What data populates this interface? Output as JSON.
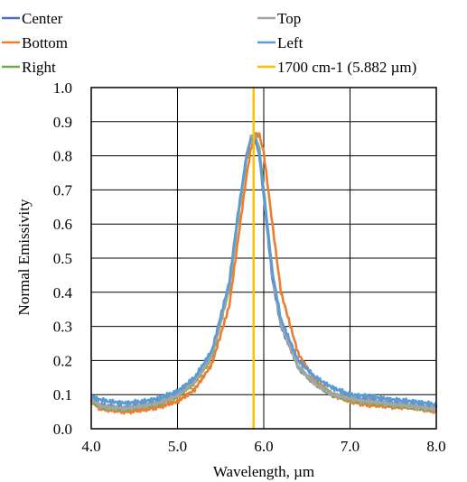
{
  "chart_data": {
    "type": "line",
    "title": "",
    "xlabel": "Wavelength, µm",
    "ylabel": "Normal Emissivity",
    "xlim": [
      4.0,
      8.0
    ],
    "ylim": [
      0.0,
      1.0
    ],
    "x_ticks": [
      "4.0",
      "5.0",
      "6.0",
      "7.0",
      "8.0"
    ],
    "y_ticks": [
      "0.0",
      "0.1",
      "0.2",
      "0.3",
      "0.4",
      "0.5",
      "0.6",
      "0.7",
      "0.8",
      "0.9",
      "1.0"
    ],
    "grid": true,
    "legend_position": "top",
    "series": [
      {
        "name": "Center",
        "color": "#4472C4",
        "x": [
          4.0,
          4.1,
          4.2,
          4.4,
          4.6,
          4.8,
          5.0,
          5.2,
          5.4,
          5.6,
          5.7,
          5.8,
          5.85,
          5.9,
          5.95,
          6.0,
          6.1,
          6.2,
          6.4,
          6.6,
          6.8,
          7.0,
          7.2,
          7.5,
          7.8,
          8.0
        ],
        "y": [
          0.09,
          0.07,
          0.065,
          0.062,
          0.07,
          0.08,
          0.1,
          0.14,
          0.22,
          0.42,
          0.62,
          0.8,
          0.85,
          0.85,
          0.8,
          0.68,
          0.44,
          0.3,
          0.18,
          0.13,
          0.1,
          0.09,
          0.085,
          0.075,
          0.068,
          0.06
        ]
      },
      {
        "name": "Bottom",
        "color": "#ED7D31",
        "x": [
          4.0,
          4.1,
          4.2,
          4.4,
          4.6,
          4.8,
          5.0,
          5.2,
          5.4,
          5.6,
          5.7,
          5.8,
          5.85,
          5.9,
          5.95,
          6.0,
          6.1,
          6.2,
          6.4,
          6.6,
          6.8,
          7.0,
          7.2,
          7.5,
          7.8,
          8.0
        ],
        "y": [
          0.08,
          0.06,
          0.055,
          0.05,
          0.055,
          0.065,
          0.08,
          0.115,
          0.19,
          0.36,
          0.55,
          0.74,
          0.82,
          0.86,
          0.86,
          0.81,
          0.6,
          0.4,
          0.22,
          0.14,
          0.1,
          0.08,
          0.07,
          0.065,
          0.06,
          0.05
        ]
      },
      {
        "name": "Right",
        "color": "#70AD47",
        "x": [
          4.0,
          4.1,
          4.2,
          4.4,
          4.6,
          4.8,
          5.0,
          5.2,
          5.4,
          5.6,
          5.7,
          5.8,
          5.85,
          5.9,
          5.95,
          6.0,
          6.1,
          6.2,
          6.4,
          6.6,
          6.8,
          7.0,
          7.2,
          7.5,
          7.8,
          8.0
        ],
        "y": [
          0.085,
          0.065,
          0.06,
          0.058,
          0.065,
          0.075,
          0.095,
          0.135,
          0.21,
          0.41,
          0.61,
          0.79,
          0.85,
          0.86,
          0.82,
          0.7,
          0.46,
          0.31,
          0.18,
          0.13,
          0.1,
          0.085,
          0.078,
          0.07,
          0.062,
          0.055
        ]
      },
      {
        "name": "Top",
        "color": "#A5A5A5",
        "x": [
          4.0,
          4.1,
          4.2,
          4.4,
          4.6,
          4.8,
          5.0,
          5.2,
          5.4,
          5.6,
          5.7,
          5.8,
          5.85,
          5.9,
          5.95,
          6.0,
          6.1,
          6.2,
          6.4,
          6.6,
          6.8,
          7.0,
          7.2,
          7.5,
          7.8,
          8.0
        ],
        "y": [
          0.087,
          0.068,
          0.062,
          0.06,
          0.067,
          0.077,
          0.097,
          0.138,
          0.215,
          0.415,
          0.615,
          0.795,
          0.853,
          0.858,
          0.81,
          0.69,
          0.45,
          0.305,
          0.18,
          0.13,
          0.1,
          0.088,
          0.08,
          0.072,
          0.064,
          0.057
        ]
      },
      {
        "name": "Left",
        "color": "#5B9BD5",
        "x": [
          4.0,
          4.1,
          4.2,
          4.4,
          4.6,
          4.8,
          5.0,
          5.2,
          5.4,
          5.6,
          5.7,
          5.8,
          5.85,
          5.9,
          5.95,
          6.0,
          6.1,
          6.2,
          6.4,
          6.6,
          6.8,
          7.0,
          7.2,
          7.5,
          7.8,
          8.0
        ],
        "y": [
          0.095,
          0.085,
          0.08,
          0.075,
          0.08,
          0.09,
          0.11,
          0.15,
          0.23,
          0.43,
          0.63,
          0.8,
          0.85,
          0.85,
          0.8,
          0.69,
          0.46,
          0.32,
          0.2,
          0.15,
          0.12,
          0.1,
          0.095,
          0.085,
          0.078,
          0.07
        ]
      }
    ],
    "reference_line": {
      "name": "1700 cm-1 (5.882 µm)",
      "color": "#FFC000",
      "x": 5.882
    }
  }
}
